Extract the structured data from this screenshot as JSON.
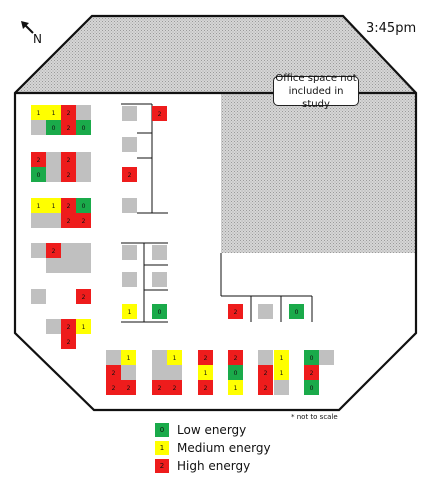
{
  "time": "3:45pm",
  "north_label": "N",
  "callout_text": "Office space not included in study",
  "scale_note": "* not to scale",
  "colors": {
    "low": "#1aaa4a",
    "medium": "#ffff00",
    "high": "#ee1c1c",
    "empty": "#c0c0c0",
    "excluded_hatch": "#c8c8c8",
    "wall": "#111111"
  },
  "legend": [
    {
      "level": "low",
      "code": "0",
      "label": "Low energy"
    },
    {
      "level": "medium",
      "code": "1",
      "label": "Medium energy"
    },
    {
      "level": "high",
      "code": "2",
      "label": "High energy"
    }
  ],
  "desk_labels": {
    "low": "0",
    "medium": "1",
    "high": "2"
  }
}
